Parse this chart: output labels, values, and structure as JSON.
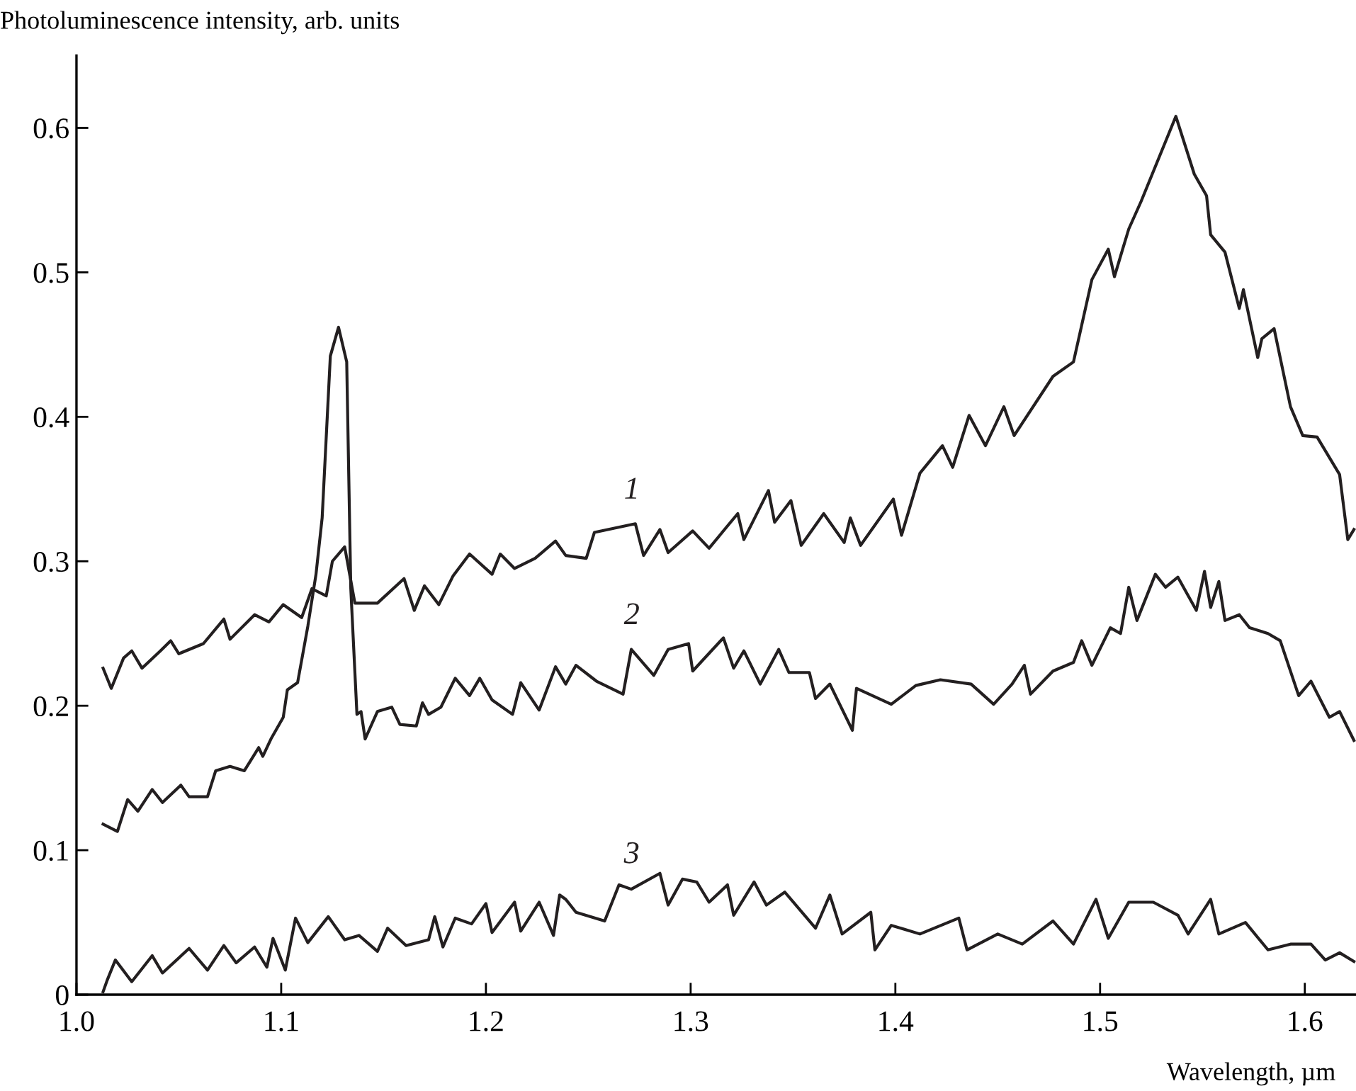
{
  "chart_data": {
    "type": "line",
    "ylabel": "Photoluminescence intensity, arb. units",
    "xlabel": "Wavelength, µm",
    "xlim": [
      1.0,
      1.625
    ],
    "ylim": [
      0,
      0.65
    ],
    "xticks": [
      {
        "value": 1.0,
        "label": "1.0"
      },
      1.1,
      1.2,
      1.3,
      1.4,
      1.5,
      1.6
    ],
    "yticks": [
      0,
      0.1,
      0.2,
      0.3,
      0.4,
      0.5,
      0.6
    ],
    "grid": false,
    "legend": false,
    "line_style": "solid",
    "marker": "none",
    "series": [
      {
        "name": "1",
        "color": "#231f20",
        "x": [
          1.013,
          1.017,
          1.023,
          1.027,
          1.032,
          1.041,
          1.046,
          1.05,
          1.062,
          1.072,
          1.075,
          1.087,
          1.094,
          1.101,
          1.11,
          1.115,
          1.122,
          1.125,
          1.131,
          1.136,
          1.147,
          1.16,
          1.165,
          1.17,
          1.177,
          1.184,
          1.192,
          1.203,
          1.207,
          1.214,
          1.224,
          1.234,
          1.239,
          1.249,
          1.253,
          1.273,
          1.277,
          1.285,
          1.289,
          1.301,
          1.309,
          1.323,
          1.326,
          1.338,
          1.341,
          1.349,
          1.354,
          1.365,
          1.375,
          1.378,
          1.383,
          1.399,
          1.403,
          1.412,
          1.423,
          1.428,
          1.436,
          1.444,
          1.453,
          1.458,
          1.477,
          1.487,
          1.496,
          1.504,
          1.507,
          1.511,
          1.514,
          1.52,
          1.537,
          1.546,
          1.552,
          1.554,
          1.561,
          1.568,
          1.57,
          1.577,
          1.579,
          1.585,
          1.593,
          1.599,
          1.606,
          1.617,
          1.621,
          1.624
        ],
        "values": [
          0.226,
          0.212,
          0.233,
          0.238,
          0.226,
          0.238,
          0.245,
          0.236,
          0.243,
          0.26,
          0.246,
          0.263,
          0.258,
          0.27,
          0.261,
          0.281,
          0.276,
          0.3,
          0.31,
          0.271,
          0.271,
          0.288,
          0.266,
          0.283,
          0.27,
          0.29,
          0.305,
          0.291,
          0.305,
          0.295,
          0.302,
          0.314,
          0.304,
          0.302,
          0.32,
          0.326,
          0.304,
          0.322,
          0.306,
          0.321,
          0.309,
          0.333,
          0.315,
          0.349,
          0.327,
          0.342,
          0.311,
          0.333,
          0.313,
          0.33,
          0.311,
          0.343,
          0.318,
          0.361,
          0.38,
          0.365,
          0.401,
          0.38,
          0.407,
          0.387,
          0.428,
          0.438,
          0.495,
          0.516,
          0.497,
          0.516,
          0.53,
          0.549,
          0.608,
          0.568,
          0.553,
          0.526,
          0.514,
          0.475,
          0.488,
          0.441,
          0.454,
          0.461,
          0.407,
          0.387,
          0.386,
          0.36,
          0.315,
          0.322
        ]
      },
      {
        "name": "2",
        "color": "#231f20",
        "x": [
          1.013,
          1.02,
          1.025,
          1.03,
          1.037,
          1.042,
          1.051,
          1.055,
          1.064,
          1.068,
          1.075,
          1.082,
          1.089,
          1.091,
          1.095,
          1.101,
          1.103,
          1.108,
          1.113,
          1.117,
          1.12,
          1.124,
          1.128,
          1.132,
          1.134,
          1.137,
          1.139,
          1.141,
          1.147,
          1.154,
          1.158,
          1.166,
          1.169,
          1.172,
          1.178,
          1.185,
          1.192,
          1.197,
          1.203,
          1.213,
          1.217,
          1.226,
          1.234,
          1.239,
          1.244,
          1.254,
          1.267,
          1.271,
          1.282,
          1.289,
          1.299,
          1.301,
          1.316,
          1.321,
          1.326,
          1.334,
          1.343,
          1.348,
          1.358,
          1.361,
          1.368,
          1.379,
          1.381,
          1.398,
          1.41,
          1.422,
          1.437,
          1.448,
          1.457,
          1.463,
          1.466,
          1.477,
          1.487,
          1.491,
          1.496,
          1.505,
          1.51,
          1.514,
          1.518,
          1.527,
          1.532,
          1.538,
          1.547,
          1.551,
          1.554,
          1.558,
          1.561,
          1.568,
          1.573,
          1.582,
          1.588,
          1.597,
          1.603,
          1.612,
          1.617,
          1.624
        ],
        "values": [
          0.118,
          0.113,
          0.135,
          0.127,
          0.142,
          0.133,
          0.145,
          0.137,
          0.137,
          0.155,
          0.158,
          0.155,
          0.171,
          0.165,
          0.177,
          0.192,
          0.211,
          0.216,
          0.255,
          0.291,
          0.33,
          0.442,
          0.462,
          0.438,
          0.281,
          0.194,
          0.196,
          0.177,
          0.196,
          0.199,
          0.187,
          0.186,
          0.202,
          0.194,
          0.199,
          0.219,
          0.207,
          0.219,
          0.204,
          0.194,
          0.216,
          0.197,
          0.227,
          0.215,
          0.228,
          0.217,
          0.208,
          0.239,
          0.221,
          0.239,
          0.243,
          0.224,
          0.247,
          0.226,
          0.238,
          0.215,
          0.239,
          0.223,
          0.223,
          0.205,
          0.215,
          0.183,
          0.212,
          0.201,
          0.214,
          0.218,
          0.215,
          0.201,
          0.215,
          0.228,
          0.208,
          0.224,
          0.23,
          0.245,
          0.228,
          0.254,
          0.25,
          0.282,
          0.259,
          0.291,
          0.282,
          0.289,
          0.266,
          0.293,
          0.268,
          0.286,
          0.259,
          0.263,
          0.254,
          0.25,
          0.245,
          0.207,
          0.217,
          0.192,
          0.196,
          0.176
        ]
      },
      {
        "name": "3",
        "color": "#231f20",
        "x": [
          1.013,
          1.015,
          1.019,
          1.027,
          1.037,
          1.042,
          1.055,
          1.064,
          1.072,
          1.078,
          1.087,
          1.093,
          1.096,
          1.102,
          1.107,
          1.113,
          1.123,
          1.131,
          1.138,
          1.147,
          1.152,
          1.161,
          1.172,
          1.175,
          1.179,
          1.185,
          1.193,
          1.2,
          1.203,
          1.214,
          1.217,
          1.226,
          1.233,
          1.236,
          1.239,
          1.244,
          1.258,
          1.265,
          1.271,
          1.285,
          1.289,
          1.296,
          1.303,
          1.309,
          1.318,
          1.321,
          1.331,
          1.337,
          1.346,
          1.361,
          1.368,
          1.374,
          1.388,
          1.39,
          1.398,
          1.412,
          1.431,
          1.435,
          1.45,
          1.462,
          1.477,
          1.487,
          1.498,
          1.504,
          1.514,
          1.526,
          1.538,
          1.543,
          1.554,
          1.558,
          1.571,
          1.582,
          1.593,
          1.603,
          1.61,
          1.617,
          1.624
        ],
        "values": [
          0.002,
          0.01,
          0.024,
          0.009,
          0.027,
          0.015,
          0.032,
          0.017,
          0.034,
          0.022,
          0.033,
          0.019,
          0.039,
          0.017,
          0.053,
          0.036,
          0.054,
          0.038,
          0.041,
          0.03,
          0.046,
          0.034,
          0.038,
          0.054,
          0.033,
          0.053,
          0.049,
          0.063,
          0.043,
          0.064,
          0.044,
          0.064,
          0.041,
          0.069,
          0.066,
          0.057,
          0.051,
          0.076,
          0.073,
          0.084,
          0.062,
          0.08,
          0.078,
          0.064,
          0.076,
          0.055,
          0.078,
          0.062,
          0.071,
          0.046,
          0.069,
          0.042,
          0.057,
          0.031,
          0.048,
          0.042,
          0.053,
          0.031,
          0.042,
          0.035,
          0.051,
          0.035,
          0.066,
          0.039,
          0.064,
          0.064,
          0.055,
          0.042,
          0.066,
          0.042,
          0.05,
          0.031,
          0.035,
          0.035,
          0.024,
          0.029,
          0.023
        ]
      }
    ]
  }
}
